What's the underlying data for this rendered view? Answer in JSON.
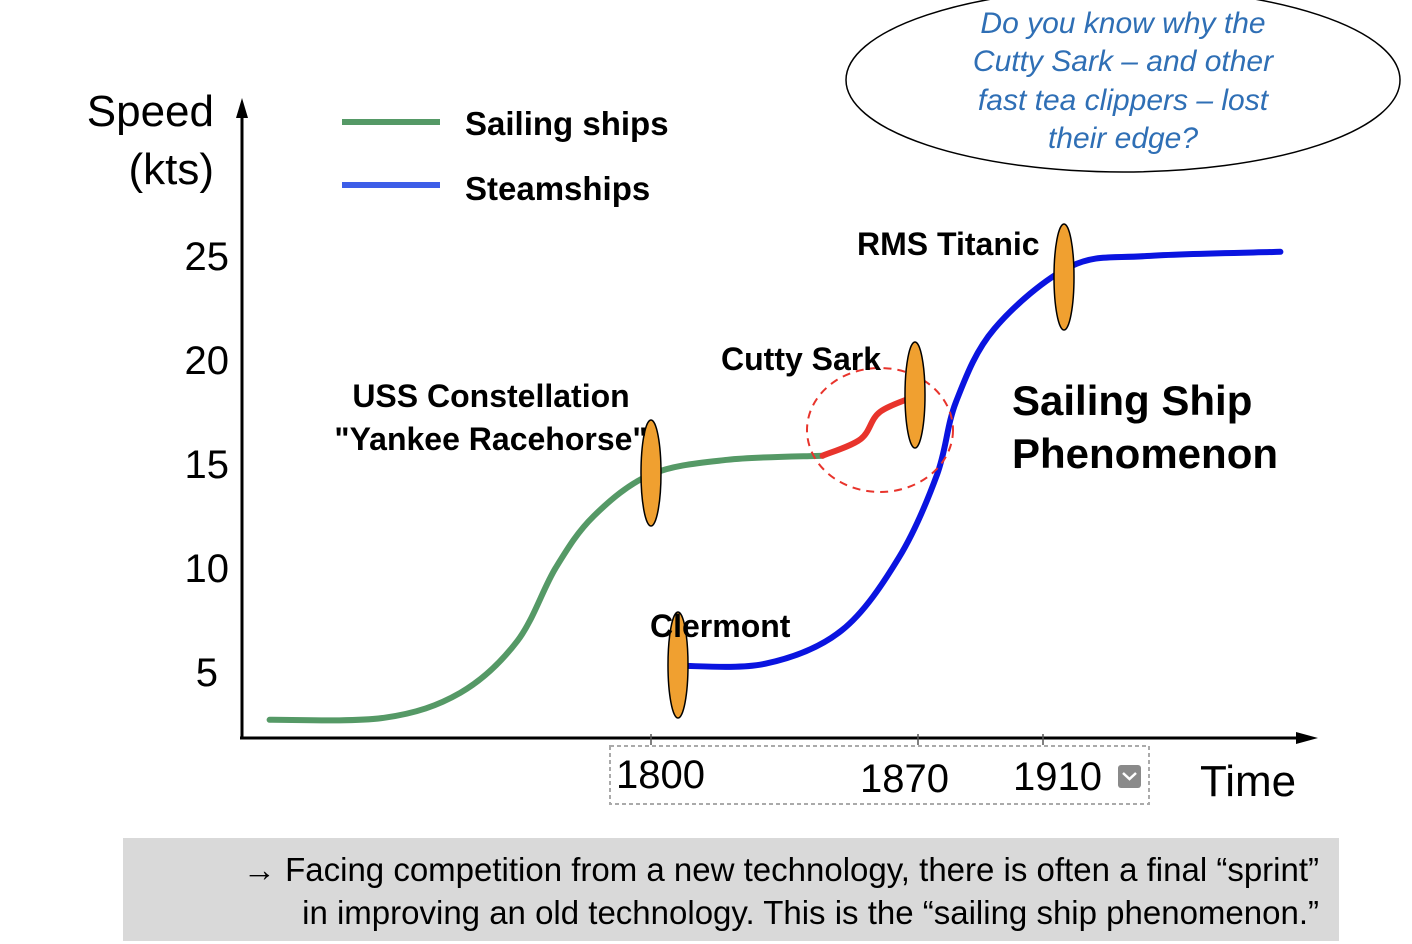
{
  "chart_data": {
    "type": "line",
    "ylabel": [
      "Speed",
      "(kts)"
    ],
    "xlabel": "Time",
    "y_ticks": [
      "25",
      "20",
      "15",
      "10",
      "5"
    ],
    "x_ticks": [
      "1800",
      "1870",
      "1910"
    ],
    "legend": {
      "placement": "top-left",
      "entries": [
        {
          "name": "Sailing ships",
          "color": "#559966"
        },
        {
          "name": "Steamships",
          "color": "#3d5ee8"
        }
      ]
    },
    "series": [
      {
        "name": "Sailing ships",
        "color": "#559966",
        "points": [
          [
            1700,
            2.7
          ],
          [
            1730,
            2.8
          ],
          [
            1750,
            4
          ],
          [
            1765,
            6.5
          ],
          [
            1775,
            10
          ],
          [
            1785,
            12.5
          ],
          [
            1800,
            14.5
          ],
          [
            1820,
            15.2
          ],
          [
            1845,
            15.4
          ]
        ],
        "line_width": 6
      },
      {
        "name": "sprint",
        "color": "#e8342c",
        "points": [
          [
            1845,
            15.4
          ],
          [
            1855,
            16.2
          ],
          [
            1860,
            17.5
          ],
          [
            1870,
            18.3
          ]
        ],
        "line_width": 6
      },
      {
        "name": "Steamships",
        "color": "#0a14e0",
        "points": [
          [
            1807,
            5.3
          ],
          [
            1830,
            5.4
          ],
          [
            1850,
            7
          ],
          [
            1865,
            10.5
          ],
          [
            1875,
            14.5
          ],
          [
            1880,
            18
          ],
          [
            1890,
            21.5
          ],
          [
            1910,
            24.5
          ],
          [
            1930,
            25
          ],
          [
            1965,
            25.2
          ]
        ],
        "line_width": 6
      }
    ],
    "markers": [
      {
        "label": "Clermont",
        "x": 1807,
        "y": 5
      },
      {
        "label": "USS Constellation \"Yankee Racehorse\"",
        "x": 1800,
        "y": 15
      },
      {
        "label": "Cutty Sark",
        "x": 1870,
        "y": 18
      },
      {
        "label": "RMS Titanic",
        "x": 1905,
        "y": 24.5
      }
    ],
    "annotations": {
      "constellation": [
        "USS Constellation",
        "\"Yankee Racehorse\""
      ],
      "cutty_sark": "Cutty Sark",
      "titanic": "RMS Titanic",
      "clermont": "Clermont",
      "phenomenon": [
        "Sailing Ship",
        "Phenomenon"
      ]
    },
    "question_bubble": [
      "Do you know why the",
      "Cutty Sark – and other",
      "fast tea clippers – lost",
      "their edge?"
    ]
  },
  "caption": [
    "→ Facing competition from a new technology, there is often a final “sprint”",
    "in improving an old technology. This is the “sailing ship phenomenon.”"
  ]
}
